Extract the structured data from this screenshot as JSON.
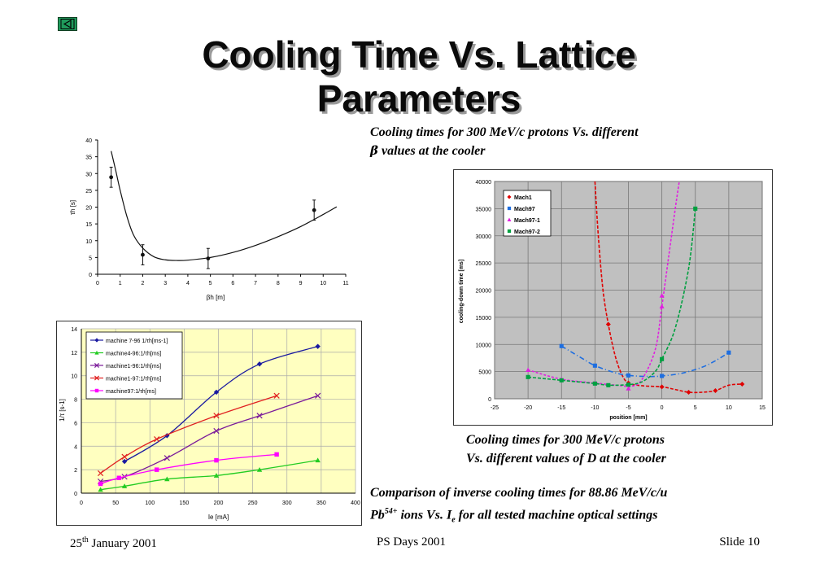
{
  "title": "Cooling Time Vs. Lattice Parameters",
  "captions": {
    "beta_1": "Cooling times for 300 MeV/c protons Vs. different",
    "beta_2a": "β",
    "beta_2b": " values at the cooler",
    "d_1": "Cooling times for 300 MeV/c protons",
    "d_2": "Vs. different values of D at the cooler",
    "inv_1": "Comparison of inverse cooling times for 88.86 MeV/c/u",
    "inv_2a": "Pb",
    "inv_2b": "54+",
    "inv_2c": " ions Vs. I",
    "inv_2d": "e",
    "inv_2e": " for all tested machine optical settings"
  },
  "footer": {
    "date_a": "25",
    "date_b": "th",
    "date_c": " January 2001",
    "event": "PS Days 2001",
    "slide": "Slide 10"
  },
  "chart_data": [
    {
      "type": "line",
      "xlabel": "βh   [m]",
      "ylabel": "τh [s]",
      "xlim": [
        0,
        11
      ],
      "ylim": [
        0,
        40
      ],
      "xticks": [
        0,
        1,
        2,
        3,
        4,
        5,
        6,
        7,
        8,
        9,
        10,
        11
      ],
      "yticks": [
        0,
        5,
        10,
        15,
        20,
        25,
        30,
        35,
        40
      ],
      "series": [
        {
          "points": [
            [
              0.6,
              36.7
            ],
            [
              0.8,
              31
            ],
            [
              1.0,
              25
            ],
            [
              1.3,
              17.2
            ],
            [
              1.6,
              11.6
            ],
            [
              2.0,
              7.8
            ],
            [
              2.5,
              5.2
            ],
            [
              3.0,
              4.3
            ],
            [
              3.5,
              4.1
            ],
            [
              4.0,
              4.2
            ],
            [
              5.0,
              5.0
            ],
            [
              6.0,
              6.5
            ],
            [
              7.0,
              8.6
            ],
            [
              8.0,
              11.2
            ],
            [
              9.0,
              14.2
            ],
            [
              10.0,
              17.8
            ],
            [
              10.6,
              20.1
            ]
          ]
        },
        {
          "points": [
            [
              0.6,
              28.9
            ],
            [
              2.0,
              5.8
            ],
            [
              4.9,
              4.7
            ],
            [
              9.6,
              19.1
            ]
          ],
          "err": [
            3.0,
            3.0,
            3.0,
            3.0
          ]
        }
      ],
      "grid": false
    },
    {
      "type": "scatter",
      "xlabel": "position [mm]",
      "ylabel": "cooling-down time [ms]",
      "xlim": [
        -25,
        15
      ],
      "ylim": [
        0,
        40000
      ],
      "xticks": [
        -25,
        -20,
        -15,
        -10,
        -5,
        0,
        5,
        10,
        15
      ],
      "yticks": [
        0,
        5000,
        10000,
        15000,
        20000,
        25000,
        30000,
        35000,
        40000
      ],
      "legend": "top-left",
      "grid": true,
      "series": [
        {
          "name": "Mach1",
          "color": "#e00000",
          "marker": "diamond",
          "points": [
            [
              -8,
              13700
            ],
            [
              -5,
              2900
            ],
            [
              0,
              2200
            ],
            [
              4,
              1200
            ],
            [
              8,
              1500
            ],
            [
              12,
              2700
            ]
          ],
          "curve": [
            [
              -10,
              40000
            ],
            [
              -9.5,
              30000
            ],
            [
              -8.8,
              20000
            ],
            [
              -8,
              13700
            ],
            [
              -7,
              8000
            ],
            [
              -6,
              4500
            ],
            [
              -5,
              2900
            ],
            [
              -3,
              2400
            ],
            [
              0,
              2200
            ],
            [
              2,
              1700
            ],
            [
              4,
              1200
            ],
            [
              6,
              1200
            ],
            [
              8,
              1500
            ],
            [
              10,
              2500
            ],
            [
              12,
              2700
            ]
          ]
        },
        {
          "name": "Mach97",
          "color": "#1e6ee0",
          "marker": "square",
          "points": [
            [
              -15,
              9700
            ],
            [
              -10,
              6100
            ],
            [
              -5,
              4300
            ],
            [
              0,
              4200
            ],
            [
              10,
              8500
            ]
          ],
          "curve": [
            [
              -15,
              9700
            ],
            [
              -12,
              7500
            ],
            [
              -10,
              6100
            ],
            [
              -7,
              4800
            ],
            [
              -5,
              4300
            ],
            [
              -2,
              4100
            ],
            [
              0,
              4200
            ],
            [
              3,
              4700
            ],
            [
              6,
              5800
            ],
            [
              8,
              7000
            ],
            [
              10,
              8500
            ]
          ]
        },
        {
          "name": "Mach97-1",
          "color": "#e020e0",
          "marker": "triangle",
          "points": [
            [
              -20,
              5300
            ],
            [
              -15,
              3600
            ],
            [
              -10,
              2900
            ],
            [
              -5,
              1900
            ],
            [
              0,
              17000
            ],
            [
              0,
              19000
            ]
          ],
          "curve": [
            [
              -20,
              5300
            ],
            [
              -15,
              3600
            ],
            [
              -10,
              2900
            ],
            [
              -6,
              2400
            ],
            [
              -4.5,
              2300
            ],
            [
              -3,
              3500
            ],
            [
              -1,
              9000
            ],
            [
              0,
              17000
            ],
            [
              1,
              26000
            ],
            [
              2,
              35000
            ],
            [
              2.6,
              40000
            ]
          ]
        },
        {
          "name": "Mach97-2",
          "color": "#00a040",
          "marker": "square",
          "points": [
            [
              -20,
              4000
            ],
            [
              -15,
              3400
            ],
            [
              -10,
              2800
            ],
            [
              -8,
              2500
            ],
            [
              -5,
              2600
            ],
            [
              0,
              7300
            ],
            [
              5,
              35000
            ]
          ],
          "curve": [
            [
              -20,
              4000
            ],
            [
              -15,
              3400
            ],
            [
              -10,
              2800
            ],
            [
              -8,
              2500
            ],
            [
              -5,
              2600
            ],
            [
              -3,
              3100
            ],
            [
              -1,
              5000
            ],
            [
              0,
              7300
            ],
            [
              2,
              13000
            ],
            [
              4,
              24000
            ],
            [
              5,
              35000
            ]
          ]
        }
      ]
    },
    {
      "type": "line",
      "xlabel": "Ie [mA]",
      "ylabel": "1/τ [s-1]",
      "xlim": [
        0,
        400
      ],
      "ylim": [
        0,
        14
      ],
      "xticks": [
        0,
        50,
        100,
        150,
        200,
        250,
        300,
        350,
        400
      ],
      "yticks": [
        0,
        2,
        4,
        6,
        8,
        10,
        12,
        14
      ],
      "legend": "top-left",
      "grid": true,
      "series": [
        {
          "name": "machine 7-96 1/τh[ms-1]",
          "color": "#1a1aa0",
          "marker": "diamond",
          "points": [
            [
              63,
              2.7
            ],
            [
              125,
              4.9
            ],
            [
              197,
              8.6
            ],
            [
              260,
              11.0
            ],
            [
              345,
              12.5
            ]
          ]
        },
        {
          "name": "machine4-96:1/τh[ms]",
          "color": "#22cc22",
          "marker": "triangle",
          "points": [
            [
              28,
              0.3
            ],
            [
              63,
              0.6
            ],
            [
              125,
              1.2
            ],
            [
              197,
              1.5
            ],
            [
              260,
              2.0
            ],
            [
              345,
              2.8
            ]
          ]
        },
        {
          "name": "machine1-96:1/τh[ms]",
          "color": "#7a1a9a",
          "marker": "x",
          "points": [
            [
              28,
              1.0
            ],
            [
              63,
              1.4
            ],
            [
              125,
              3.0
            ],
            [
              197,
              5.3
            ],
            [
              260,
              6.6
            ],
            [
              345,
              8.3
            ]
          ]
        },
        {
          "name": "machine1-97:1/τh[ms]",
          "color": "#e02020",
          "marker": "x",
          "points": [
            [
              28,
              1.7
            ],
            [
              63,
              3.1
            ],
            [
              110,
              4.6
            ],
            [
              197,
              6.6
            ],
            [
              285,
              8.3
            ]
          ]
        },
        {
          "name": "machine97:1/τh[ms]",
          "color": "#ff00ff",
          "marker": "square",
          "points": [
            [
              28,
              0.8
            ],
            [
              55,
              1.3
            ],
            [
              110,
              2.0
            ],
            [
              197,
              2.8
            ],
            [
              285,
              3.3
            ]
          ]
        }
      ]
    }
  ]
}
